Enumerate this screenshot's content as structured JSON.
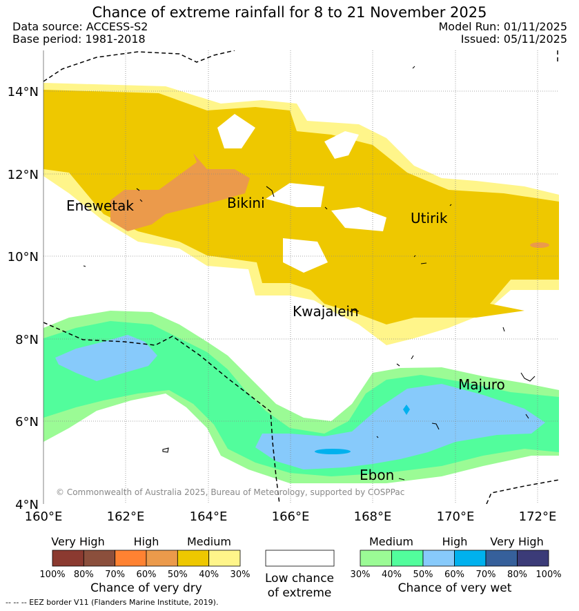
{
  "title": "Chance of extreme rainfall for 8 to 21 November 2025",
  "meta": {
    "data_source": "Data source: ACCESS-S2",
    "base_period": "Base period: 1981-2018",
    "model_run": "Model Run: 01/11/2025",
    "issued": "Issued: 05/11/2025"
  },
  "map": {
    "x_ticks": [
      "160°E",
      "162°E",
      "164°E",
      "166°E",
      "168°E",
      "170°E",
      "172°E"
    ],
    "y_ticks": [
      "14°N",
      "12°N",
      "10°N",
      "8°N",
      "6°N",
      "4°N"
    ],
    "places": [
      "Enewetak",
      "Bikini",
      "Utirik",
      "Kwajalein",
      "Majuro",
      "Ebon"
    ],
    "copyright": "© Commonwealth of Australia 2025, Bureau of Meteorology, supported by COSPPac"
  },
  "legend": {
    "dry": {
      "headers": [
        "Very High",
        "High",
        "Medium"
      ],
      "colors": [
        "#8b3a30",
        "#8b4f3c",
        "#ff8232",
        "#eb9a4b",
        "#eec800",
        "#fff58a"
      ],
      "ticks": [
        "100%",
        "80%",
        "70%",
        "60%",
        "50%",
        "40%",
        "30%"
      ],
      "title": "Chance of very dry"
    },
    "low": {
      "title_line1": "Low chance",
      "title_line2": "of extreme",
      "color": "#ffffff"
    },
    "wet": {
      "headers": [
        "Medium",
        "High",
        "Very High"
      ],
      "colors": [
        "#9bfb95",
        "#52fd9c",
        "#87cafb",
        "#00b1ee",
        "#36609b",
        "#3b3b78"
      ],
      "ticks": [
        "30%",
        "40%",
        "50%",
        "60%",
        "70%",
        "80%",
        "100%"
      ],
      "title": "Chance of very wet"
    }
  },
  "footnote": "-- -- -- EEZ border V11 (Flanders Marine Institute, 2019)."
}
